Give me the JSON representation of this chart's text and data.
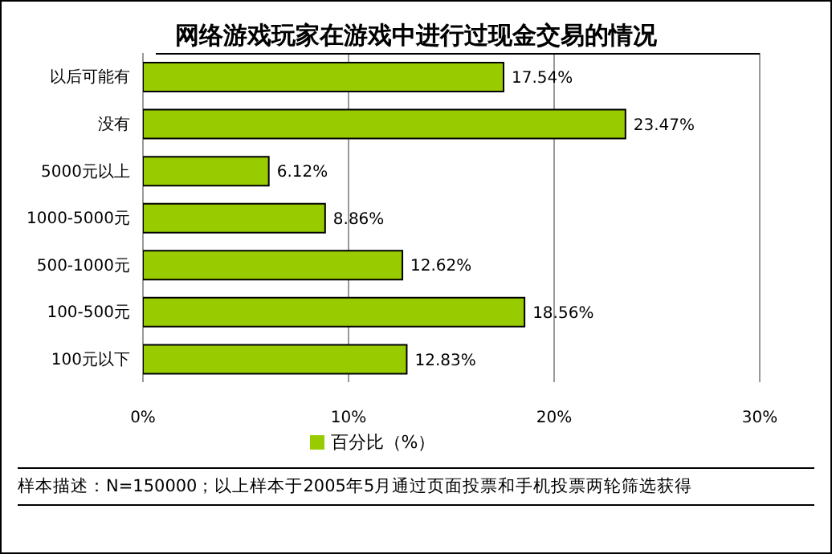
{
  "chart_data": {
    "type": "bar",
    "orientation": "horizontal",
    "title": "网络游戏玩家在游戏中进行过现金交易的情况",
    "categories": [
      "以后可能有",
      "没有",
      "5000元以上",
      "1000-5000元",
      "500-1000元",
      "100-500元",
      "100元以下"
    ],
    "series": [
      {
        "name": "百分比（%）",
        "color": "#99cc00",
        "values": [
          17.54,
          23.47,
          6.12,
          8.86,
          12.62,
          18.56,
          12.83
        ],
        "value_labels": [
          "17.54%",
          "23.47%",
          "6.12%",
          "8.86%",
          "12.62%",
          "18.56%",
          "12.83%"
        ]
      }
    ],
    "xlim": [
      0,
      30
    ],
    "xticks": [
      {
        "value": 0,
        "label": "0%"
      },
      {
        "value": 10,
        "label": "10%"
      },
      {
        "value": 20,
        "label": "20%"
      },
      {
        "value": 30,
        "label": "30%"
      }
    ],
    "grid": "x",
    "legend": "bottom",
    "annotations": [
      "样本描述：N=150000；以上样本于2005年5月通过页面投票和手机投票两轮筛选获得"
    ]
  }
}
